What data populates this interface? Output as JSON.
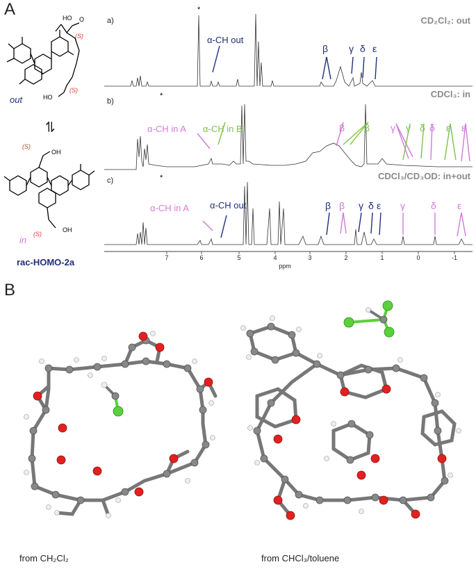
{
  "panel_a": {
    "letter": "A",
    "conformers": {
      "out": "out",
      "in": "in",
      "compound": "rac-HOMO-2a",
      "stereo": "(S)",
      "acid_group": "OH",
      "equilibrium": "⇌"
    },
    "traces": [
      {
        "id": "a",
        "label": "a)",
        "title": "CD₂Cl₂: out"
      },
      {
        "id": "b",
        "label": "b)",
        "title": "CDCl₃: in"
      },
      {
        "id": "c",
        "label": "c)",
        "title": "CDCl₃/CD₃OD: in+out"
      }
    ],
    "annotations": {
      "a_alpha_out": "α-CH out",
      "b_alpha_in_A": "α-CH in A",
      "b_alpha_in_B": "α-CH in B",
      "c_alpha_in_A": "α-CH in A",
      "c_alpha_out": "α-CH out",
      "star": "*",
      "beta": "β",
      "gamma": "γ",
      "delta": "δ",
      "epsilon": "ε"
    },
    "axis": {
      "xlabel": "ppm",
      "ticks": [
        "7",
        "6",
        "5",
        "4",
        "3",
        "2",
        "1",
        "0",
        "-1"
      ]
    },
    "colors": {
      "navy": "#1f2d7a",
      "pink": "#d07ad9",
      "green": "#7dc14a",
      "title_grey": "#8a8a8a"
    }
  },
  "panel_b": {
    "letter": "B",
    "left_caption": "from CH₂Cl₂",
    "right_caption": "from CHCl₃/toluene"
  }
}
